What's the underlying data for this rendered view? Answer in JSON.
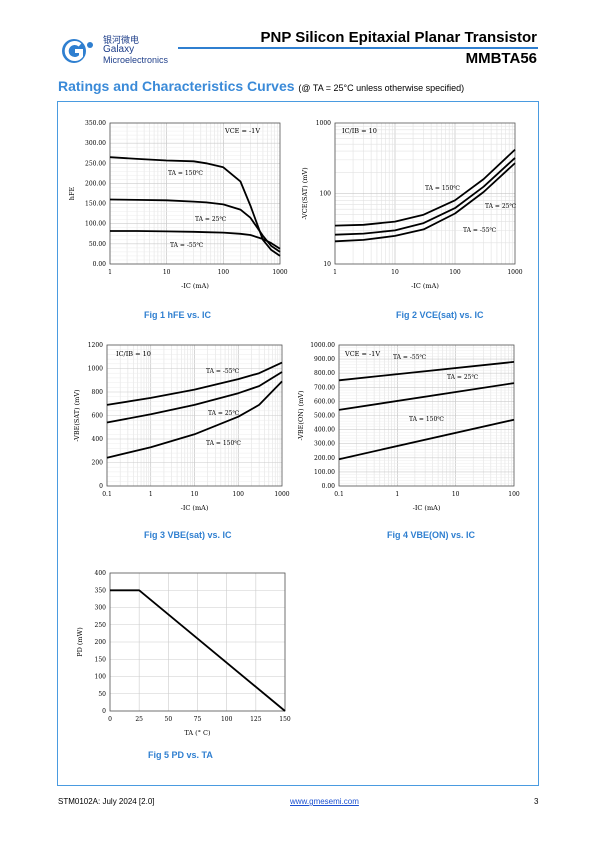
{
  "header": {
    "company_cn": "银河微电",
    "company_name": "Galaxy",
    "company_sub": "Microelectronics",
    "title": "PNP Silicon Epitaxial Planar Transistor",
    "part": "MMBTA56",
    "accent": "#2f7fd0",
    "logo_icon": "galaxy-g-logo"
  },
  "section": {
    "title": "Ratings and Characteristics Curves",
    "condition": "(@ TA = 25°C unless otherwise specified)"
  },
  "chart_data": [
    {
      "id": "fig1",
      "type": "line",
      "caption": "Fig 1   hFE vs. IC",
      "xlabel": "-IC (mA)",
      "ylabel": "hFE",
      "xscale": "log",
      "xlim": [
        1,
        1000
      ],
      "ylim": [
        0,
        350
      ],
      "xticks": [
        "1",
        "10",
        "100",
        "1000"
      ],
      "yticks": [
        "0.00",
        "50.00",
        "100.00",
        "150.00",
        "200.00",
        "250.00",
        "300.00",
        "350.00"
      ],
      "note": "VCE = -1V",
      "series": [
        {
          "name": "TA = 150℃",
          "x": [
            1,
            3,
            10,
            30,
            50,
            100,
            200,
            300,
            500,
            700,
            1000
          ],
          "y": [
            265,
            261,
            257,
            255,
            250,
            240,
            205,
            145,
            60,
            35,
            20
          ]
        },
        {
          "name": "TA = 25℃",
          "x": [
            1,
            3,
            10,
            30,
            50,
            100,
            200,
            300,
            500,
            700,
            1000
          ],
          "y": [
            160,
            159,
            158,
            155,
            153,
            148,
            135,
            115,
            70,
            45,
            30
          ]
        },
        {
          "name": "TA = -55℃",
          "x": [
            1,
            3,
            10,
            30,
            50,
            100,
            200,
            300,
            500,
            700,
            1000
          ],
          "y": [
            82,
            82,
            81,
            80,
            79,
            78,
            75,
            72,
            62,
            52,
            38
          ]
        }
      ]
    },
    {
      "id": "fig2",
      "type": "line",
      "caption": "Fig 2   VCE(sat) vs. IC",
      "xlabel": "-IC (mA)",
      "ylabel": "-VCE(SAT) (mV)",
      "xscale": "log",
      "yscale": "log",
      "xlim": [
        1,
        1000
      ],
      "ylim": [
        10,
        1000
      ],
      "xticks": [
        "1",
        "10",
        "100",
        "1000"
      ],
      "yticks": [
        "10",
        "100",
        "1000"
      ],
      "note": "IC/IB = 10",
      "series": [
        {
          "name": "TA = 150℃",
          "x": [
            1,
            3,
            10,
            30,
            100,
            300,
            1000
          ],
          "y": [
            35,
            36,
            40,
            50,
            80,
            160,
            420
          ]
        },
        {
          "name": "TA = 25℃",
          "x": [
            1,
            3,
            10,
            30,
            100,
            300,
            1000
          ],
          "y": [
            26,
            27,
            30,
            38,
            62,
            125,
            320
          ]
        },
        {
          "name": "TA = -55℃",
          "x": [
            1,
            3,
            10,
            30,
            100,
            300,
            1000
          ],
          "y": [
            21,
            22,
            25,
            31,
            52,
            105,
            270
          ]
        }
      ]
    },
    {
      "id": "fig3",
      "type": "line",
      "caption": "Fig 3   VBE(sat) vs. IC",
      "xlabel": "-IC (mA)",
      "ylabel": "-VBE(SAT) (mV)",
      "xscale": "log",
      "xlim": [
        0.1,
        1000
      ],
      "ylim": [
        0,
        1200
      ],
      "xticks": [
        "0.1",
        "1",
        "10",
        "100",
        "1000"
      ],
      "yticks": [
        "0",
        "200",
        "400",
        "600",
        "800",
        "1000",
        "1200"
      ],
      "note": "IC/IB = 10",
      "series": [
        {
          "name": "TA = -55℃",
          "x": [
            0.1,
            1,
            10,
            100,
            300,
            1000
          ],
          "y": [
            690,
            750,
            820,
            910,
            960,
            1050
          ]
        },
        {
          "name": "TA = 25℃",
          "x": [
            0.1,
            1,
            10,
            100,
            300,
            1000
          ],
          "y": [
            540,
            610,
            690,
            790,
            850,
            970
          ]
        },
        {
          "name": "TA = 150℃",
          "x": [
            0.1,
            1,
            10,
            100,
            300,
            1000
          ],
          "y": [
            240,
            330,
            440,
            590,
            690,
            890
          ]
        }
      ]
    },
    {
      "id": "fig4",
      "type": "line",
      "caption": "Fig 4   VBE(ON) vs. IC",
      "xlabel": "-IC (mA)",
      "ylabel": "-VBE(ON) (mV)",
      "xscale": "log",
      "xlim": [
        0.1,
        100
      ],
      "ylim": [
        0,
        1000
      ],
      "xticks": [
        "0.1",
        "1",
        "10",
        "100"
      ],
      "yticks": [
        "0.00",
        "100.00",
        "200.00",
        "300.00",
        "400.00",
        "500.00",
        "600.00",
        "700.00",
        "800.00",
        "900.00",
        "1000.00"
      ],
      "note": "VCE = -1V",
      "series": [
        {
          "name": "TA = -55℃",
          "x": [
            0.1,
            100
          ],
          "y": [
            750,
            880
          ]
        },
        {
          "name": "TA = 25℃",
          "x": [
            0.1,
            100
          ],
          "y": [
            540,
            730
          ]
        },
        {
          "name": "TA = 150℃",
          "x": [
            0.1,
            100
          ],
          "y": [
            190,
            470
          ]
        }
      ]
    },
    {
      "id": "fig5",
      "type": "line",
      "caption": "Fig 5   PD vs. TA",
      "xlabel": "TA (° C)",
      "ylabel": "PD (mW)",
      "xlim": [
        0,
        150
      ],
      "ylim": [
        0,
        400
      ],
      "xticks": [
        "0",
        "25",
        "50",
        "75",
        "100",
        "125",
        "150"
      ],
      "yticks": [
        "0",
        "50",
        "100",
        "150",
        "200",
        "250",
        "300",
        "350",
        "400"
      ],
      "series": [
        {
          "name": "",
          "x": [
            0,
            25,
            150
          ],
          "y": [
            350,
            350,
            0
          ]
        }
      ]
    }
  ],
  "footer": {
    "doc": "STM0102A: July 2024 [2.0]",
    "url": "www.gmesemi.com",
    "page": "3"
  }
}
